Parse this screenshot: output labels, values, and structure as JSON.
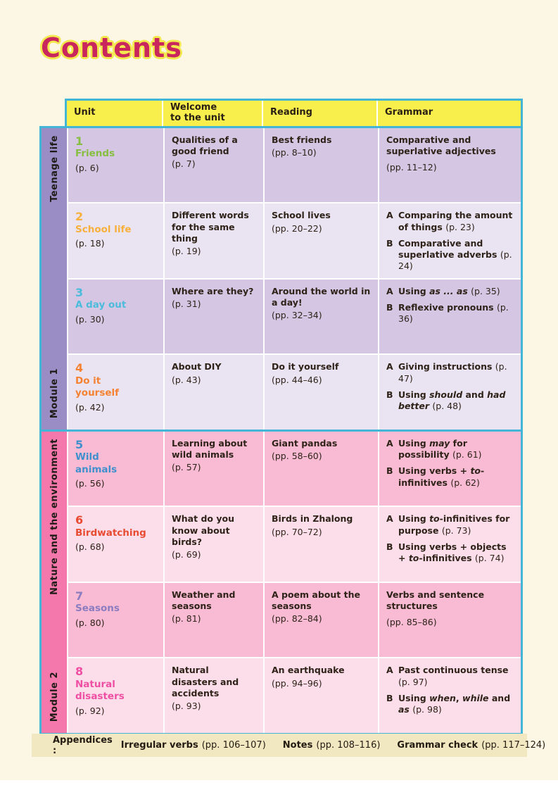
{
  "page": {
    "title": "Contents"
  },
  "colors": {
    "page_background": "#fcf6e5",
    "table_border": "#43b5d7",
    "header_yellow": "#f8ef4d",
    "footer_bar": "#f1e7c0",
    "title_pink": "#c9265e",
    "title_glow": "#f3e94f"
  },
  "header": {
    "columns": [
      "Unit",
      "Welcome\nto the unit",
      "Reading",
      "Grammar"
    ]
  },
  "modules": [
    {
      "label": "Module 1",
      "theme": "Teenage life",
      "colors": {
        "sidebar": "#9a8cc4",
        "row_a": "#d5c6e3",
        "row_b": "#e9e3f2"
      },
      "units": [
        {
          "number": "1",
          "name": "Friends",
          "page": "(p. 6)",
          "color": "#86bf40",
          "welcome": {
            "text": "Qualities of a good friend",
            "page": "(p. 7)"
          },
          "reading": {
            "text": "Best friends",
            "page": "(pp. 8–10)"
          },
          "grammar": [
            {
              "label": "",
              "text": "Comparative and superlative adjectives",
              "page": "(pp. 11–12)"
            }
          ]
        },
        {
          "number": "2",
          "name": "School life",
          "page": "(p. 18)",
          "color": "#f8b03c",
          "welcome": {
            "text": "Different words for the same thing",
            "page": "(p. 19)"
          },
          "reading": {
            "text": "School lives",
            "page": "(pp. 20–22)"
          },
          "grammar": [
            {
              "label": "A",
              "text": "Comparing the amount of things (p. 23)"
            },
            {
              "label": "B",
              "text": "Comparative and superlative adverbs (p. 24)"
            }
          ]
        },
        {
          "number": "3",
          "name": "A day out",
          "page": "(p. 30)",
          "color": "#4bbcdb",
          "welcome": {
            "text": "Where are they?",
            "page": "(p. 31)"
          },
          "reading": {
            "text": "Around the world in a day!",
            "page": "(pp. 32–34)"
          },
          "grammar": [
            {
              "label": "A",
              "text": "Using *as ... as* (p. 35)"
            },
            {
              "label": "B",
              "text": "Reflexive pronouns (p. 36)"
            }
          ]
        },
        {
          "number": "4",
          "name": "Do it yourself",
          "page": "(p. 42)",
          "color": "#f58233",
          "welcome": {
            "text": "About DIY",
            "page": "(p. 43)"
          },
          "reading": {
            "text": "Do it yourself",
            "page": "(pp. 44–46)"
          },
          "grammar": [
            {
              "label": "A",
              "text": "Giving instructions (p. 47)"
            },
            {
              "label": "B",
              "text": "Using *should* and *had better* (p. 48)"
            }
          ]
        }
      ]
    },
    {
      "label": "Module 2",
      "theme": "Nature and the environment",
      "colors": {
        "sidebar": "#f478ab",
        "row_a": "#f9bbd3",
        "row_b": "#fcdeeb"
      },
      "units": [
        {
          "number": "5",
          "name": "Wild animals",
          "page": "(p. 56)",
          "color": "#4090ce",
          "welcome": {
            "text": "Learning about wild animals",
            "page": "(p. 57)"
          },
          "reading": {
            "text": "Giant pandas",
            "page": "(pp. 58–60)"
          },
          "grammar": [
            {
              "label": "A",
              "text": "Using *may* for possibility (p. 61)"
            },
            {
              "label": "B",
              "text": "Using verbs + *to*-infinitives (p. 62)"
            }
          ]
        },
        {
          "number": "6",
          "name": "Birdwatching",
          "page": "(p. 68)",
          "color": "#e84b31",
          "welcome": {
            "text": "What do you know about birds?",
            "page": "(p. 69)"
          },
          "reading": {
            "text": "Birds in Zhalong",
            "page": "(pp. 70–72)"
          },
          "grammar": [
            {
              "label": "A",
              "text": "Using *to*-infinitives for purpose (p. 73)"
            },
            {
              "label": "B",
              "text": "Using verbs + objects + *to*-infinitives (p. 74)"
            }
          ]
        },
        {
          "number": "7",
          "name": "Seasons",
          "page": "(p. 80)",
          "color": "#8c7cc0",
          "welcome": {
            "text": "Weather and seasons",
            "page": "(p. 81)"
          },
          "reading": {
            "text": "A poem about the seasons",
            "page": "(pp. 82–84)"
          },
          "grammar": [
            {
              "label": "",
              "text": "Verbs and sentence structures",
              "page": "(pp. 85–86)"
            }
          ]
        },
        {
          "number": "8",
          "name": "Natural disasters",
          "page": "(p. 92)",
          "color": "#ee4fa3",
          "welcome": {
            "text": "Natural disasters and accidents",
            "page": "(p. 93)"
          },
          "reading": {
            "text": "An earthquake",
            "page": "(pp. 94–96)"
          },
          "grammar": [
            {
              "label": "A",
              "text": "Past continuous tense (p. 97)"
            },
            {
              "label": "B",
              "text": "Using *when*, *while* and *as* (p. 98)"
            }
          ]
        }
      ]
    }
  ],
  "footer": {
    "label": "Appendices :",
    "items": [
      {
        "name": "Irregular verbs",
        "pages": "(pp. 106–107)"
      },
      {
        "name": "Notes",
        "pages": "(pp. 108–116)"
      },
      {
        "name": "Grammar check",
        "pages": "(pp. 117–124)"
      }
    ]
  }
}
